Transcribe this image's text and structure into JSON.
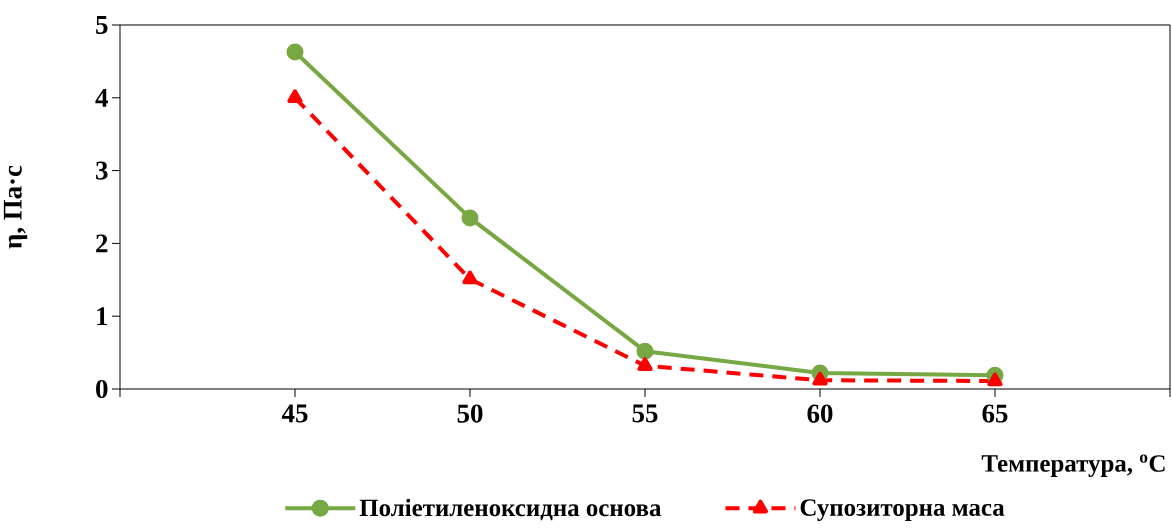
{
  "chart_data": {
    "type": "line",
    "xlabel": "Температура, $^{o}$C",
    "ylabel": "η, Па·с",
    "xlim": [
      40,
      70
    ],
    "xticks": [
      {
        "value": 40,
        "label": null
      },
      45,
      50,
      55,
      60,
      65,
      {
        "value": 70,
        "label": null
      }
    ],
    "ylim": [
      0,
      5
    ],
    "yticks": [
      0,
      1,
      2,
      3,
      4,
      5
    ],
    "grid": false,
    "legend": "bottom",
    "series": [
      {
        "name": "Поліетиленоксидна основа",
        "color": "#77a843",
        "marker": "circle",
        "line_style": "solid",
        "x": [
          45,
          50,
          55,
          60,
          65
        ],
        "values": [
          4.63,
          2.35,
          0.52,
          0.22,
          0.19
        ]
      },
      {
        "name": "Супозиторна маса",
        "color": "#ff0000",
        "marker": "triangle",
        "line_style": "dashed",
        "x": [
          45,
          50,
          55,
          60,
          65
        ],
        "values": [
          4.0,
          1.51,
          0.32,
          0.12,
          0.11
        ]
      }
    ]
  }
}
